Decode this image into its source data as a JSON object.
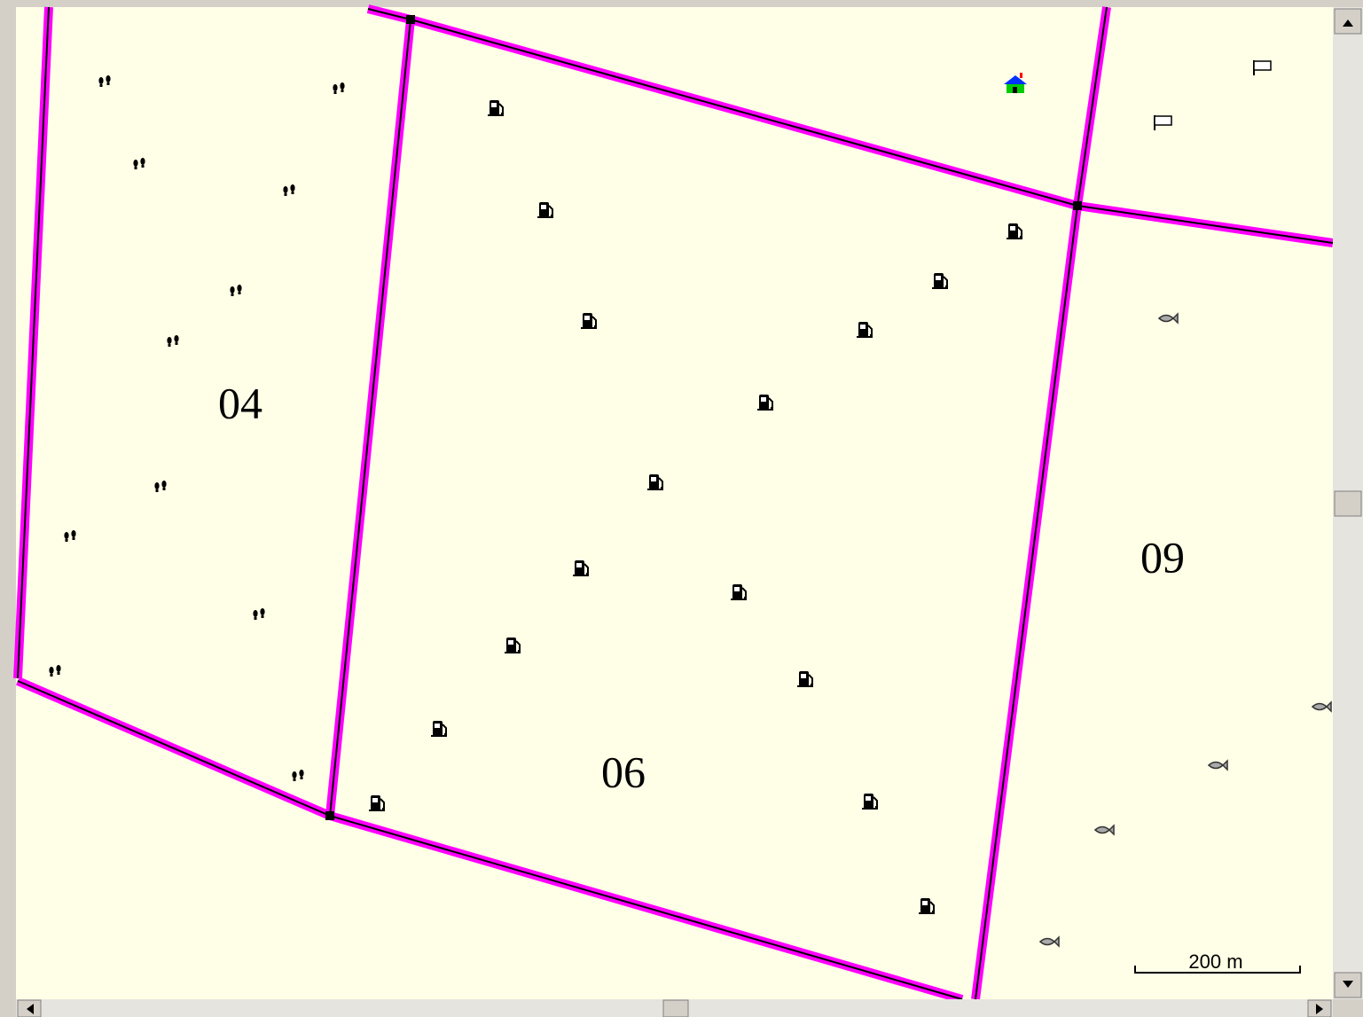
{
  "map": {
    "areas": [
      {
        "label": "04"
      },
      {
        "label": "06"
      },
      {
        "label": "09"
      }
    ],
    "scale_bar": {
      "label": "200 m"
    }
  }
}
